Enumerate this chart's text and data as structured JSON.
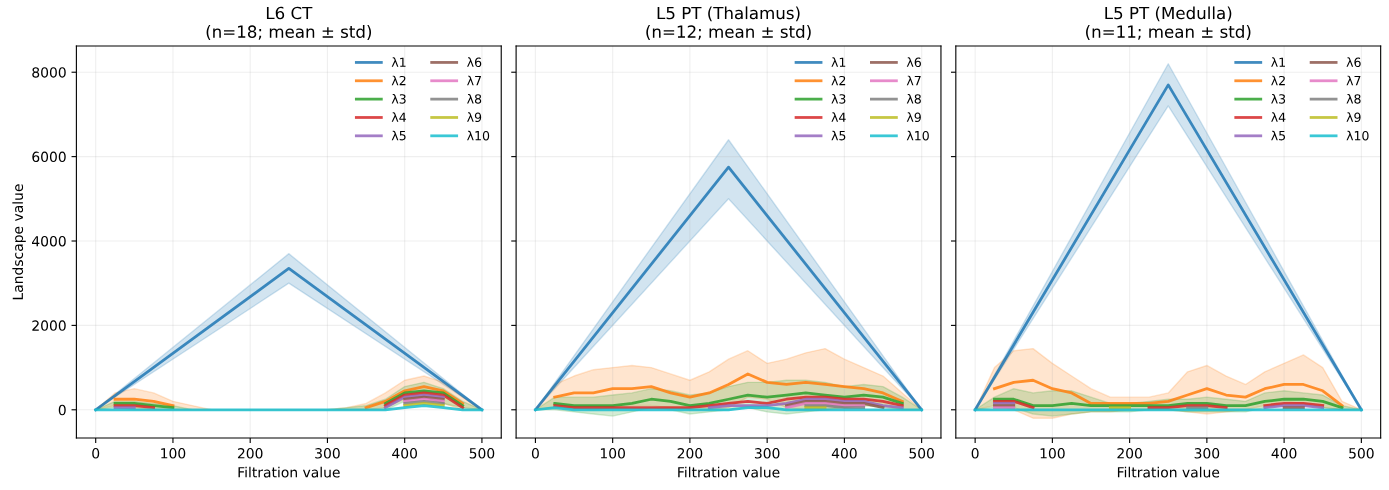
{
  "chart_data": [
    {
      "type": "line",
      "title": "L6 CT\n(n=18; mean ± std)",
      "xlabel": "Filtration value",
      "ylabel": "Landscape value",
      "xlim": [
        -25,
        525
      ],
      "ylim": [
        -670,
        8620
      ],
      "xticks": [
        0,
        100,
        200,
        300,
        400,
        500
      ],
      "yticks": [
        0,
        2000,
        4000,
        6000,
        8000
      ],
      "grid": true,
      "legend": "top right",
      "line_style": "solid",
      "x": [
        0,
        25,
        50,
        75,
        100,
        125,
        150,
        175,
        200,
        225,
        250,
        275,
        300,
        325,
        350,
        375,
        400,
        425,
        450,
        475,
        500
      ],
      "series": [
        {
          "name": "λ1",
          "color": "#1f77b4",
          "x": [
            0,
            250,
            500
          ],
          "values": [
            0,
            3350,
            0
          ],
          "lower": [
            0,
            3000,
            0
          ],
          "upper": [
            0,
            3700,
            0
          ]
        },
        {
          "name": "λ2",
          "color": "#ff7f0e",
          "values": [
            null,
            250,
            250,
            200,
            100,
            null,
            null,
            null,
            null,
            null,
            null,
            null,
            null,
            null,
            50,
            200,
            450,
            550,
            450,
            150,
            null
          ],
          "lower": [
            0,
            100,
            50,
            0,
            0,
            0,
            0,
            0,
            0,
            0,
            0,
            0,
            0,
            0,
            0,
            50,
            250,
            300,
            150,
            0,
            0
          ],
          "upper": [
            0,
            400,
            500,
            400,
            200,
            100,
            0,
            0,
            0,
            0,
            0,
            0,
            0,
            50,
            150,
            400,
            700,
            800,
            650,
            300,
            0
          ]
        },
        {
          "name": "λ3",
          "color": "#2ca02c",
          "values": [
            null,
            150,
            150,
            100,
            50,
            null,
            null,
            null,
            null,
            null,
            null,
            null,
            null,
            null,
            null,
            150,
            400,
            450,
            400,
            100,
            null
          ],
          "lower": [
            0,
            50,
            0,
            0,
            0,
            0,
            0,
            0,
            0,
            0,
            0,
            0,
            0,
            0,
            0,
            0,
            200,
            300,
            150,
            50,
            0
          ],
          "upper": [
            0,
            200,
            200,
            150,
            100,
            0,
            0,
            0,
            0,
            0,
            0,
            0,
            0,
            50,
            100,
            250,
            550,
            650,
            500,
            200,
            0
          ]
        },
        {
          "name": "λ4",
          "color": "#d62728",
          "values": [
            null,
            100,
            100,
            50,
            null,
            null,
            null,
            null,
            null,
            null,
            null,
            null,
            null,
            null,
            null,
            100,
            350,
            400,
            350,
            50,
            null
          ]
        },
        {
          "name": "λ5",
          "color": "#9467bd",
          "values": [
            null,
            50,
            50,
            null,
            null,
            null,
            null,
            null,
            null,
            null,
            null,
            null,
            null,
            null,
            null,
            50,
            300,
            350,
            300,
            null,
            null
          ]
        },
        {
          "name": "λ6",
          "color": "#8c564b",
          "values": [
            null,
            null,
            null,
            null,
            null,
            null,
            null,
            null,
            null,
            null,
            null,
            null,
            null,
            null,
            null,
            null,
            250,
            300,
            250,
            null,
            null
          ]
        },
        {
          "name": "λ7",
          "color": "#e377c2",
          "values": [
            null,
            null,
            null,
            null,
            null,
            null,
            null,
            null,
            null,
            null,
            null,
            null,
            null,
            null,
            null,
            null,
            200,
            250,
            200,
            null,
            null
          ]
        },
        {
          "name": "λ8",
          "color": "#7f7f7f",
          "values": [
            null,
            null,
            null,
            null,
            null,
            null,
            null,
            null,
            null,
            null,
            null,
            null,
            null,
            null,
            null,
            null,
            150,
            200,
            150,
            null,
            null
          ]
        },
        {
          "name": "λ9",
          "color": "#bcbd22",
          "values": [
            null,
            null,
            null,
            null,
            null,
            null,
            null,
            null,
            null,
            null,
            null,
            null,
            null,
            null,
            null,
            null,
            100,
            150,
            100,
            null,
            null
          ]
        },
        {
          "name": "λ10",
          "color": "#17becf",
          "values": [
            0,
            0,
            0,
            0,
            0,
            0,
            0,
            0,
            0,
            0,
            0,
            0,
            0,
            0,
            0,
            0,
            50,
            100,
            50,
            0,
            0
          ]
        }
      ]
    },
    {
      "type": "line",
      "title": "L5 PT (Thalamus)\n(n=12; mean ± std)",
      "xlabel": "Filtration value",
      "xlim": [
        -25,
        525
      ],
      "ylim": [
        -670,
        8620
      ],
      "xticks": [
        0,
        100,
        200,
        300,
        400,
        500
      ],
      "yticks": [
        0,
        2000,
        4000,
        6000,
        8000
      ],
      "tick_labels": "x",
      "grid": true,
      "legend": "top right",
      "line_style": "solid",
      "x": [
        0,
        25,
        50,
        75,
        100,
        125,
        150,
        175,
        200,
        225,
        250,
        275,
        300,
        325,
        350,
        375,
        400,
        425,
        450,
        475,
        500
      ],
      "series": [
        {
          "name": "λ1",
          "color": "#1f77b4",
          "x": [
            0,
            250,
            500
          ],
          "values": [
            0,
            5750,
            0
          ],
          "lower": [
            0,
            5000,
            0
          ],
          "upper": [
            0,
            6400,
            0
          ]
        },
        {
          "name": "λ2",
          "color": "#ff7f0e",
          "values": [
            null,
            300,
            400,
            400,
            500,
            500,
            550,
            400,
            300,
            400,
            600,
            850,
            650,
            600,
            650,
            600,
            550,
            500,
            400,
            200,
            null
          ],
          "lower": [
            0,
            50,
            50,
            0,
            50,
            100,
            100,
            50,
            0,
            0,
            50,
            300,
            250,
            50,
            0,
            0,
            50,
            100,
            100,
            0,
            0
          ],
          "upper": [
            0,
            600,
            800,
            950,
            1000,
            1050,
            1000,
            850,
            700,
            900,
            1200,
            1400,
            1100,
            1200,
            1350,
            1450,
            1200,
            1000,
            800,
            400,
            0
          ]
        },
        {
          "name": "λ3",
          "color": "#2ca02c",
          "values": [
            null,
            150,
            100,
            100,
            100,
            150,
            250,
            200,
            100,
            150,
            250,
            350,
            300,
            350,
            400,
            350,
            300,
            350,
            300,
            150,
            null
          ],
          "lower": [
            0,
            0,
            -50,
            -100,
            -150,
            -50,
            50,
            0,
            -100,
            -50,
            0,
            50,
            -50,
            -100,
            -50,
            0,
            50,
            100,
            50,
            0,
            0
          ],
          "upper": [
            0,
            300,
            300,
            300,
            350,
            400,
            500,
            450,
            350,
            400,
            550,
            650,
            650,
            700,
            700,
            650,
            550,
            600,
            550,
            300,
            0
          ]
        },
        {
          "name": "λ4",
          "color": "#d62728",
          "values": [
            null,
            100,
            50,
            50,
            50,
            50,
            50,
            50,
            50,
            100,
            150,
            200,
            150,
            250,
            300,
            300,
            250,
            250,
            200,
            100,
            null
          ]
        },
        {
          "name": "λ5",
          "color": "#9467bd",
          "values": [
            null,
            null,
            null,
            null,
            null,
            null,
            null,
            null,
            null,
            50,
            100,
            100,
            100,
            150,
            250,
            250,
            200,
            200,
            100,
            50,
            null
          ]
        },
        {
          "name": "λ6",
          "color": "#8c564b",
          "values": [
            null,
            null,
            null,
            null,
            null,
            null,
            null,
            null,
            null,
            null,
            null,
            null,
            null,
            100,
            200,
            200,
            150,
            150,
            50,
            null,
            null
          ]
        },
        {
          "name": "λ7",
          "color": "#e377c2",
          "values": [
            null,
            null,
            null,
            null,
            null,
            null,
            null,
            null,
            null,
            null,
            null,
            null,
            null,
            50,
            150,
            150,
            100,
            100,
            null,
            null,
            null
          ]
        },
        {
          "name": "λ8",
          "color": "#7f7f7f",
          "values": [
            null,
            null,
            null,
            null,
            null,
            null,
            null,
            null,
            null,
            null,
            null,
            null,
            null,
            null,
            100,
            100,
            50,
            50,
            null,
            null,
            null
          ]
        },
        {
          "name": "λ9",
          "color": "#bcbd22",
          "values": [
            null,
            null,
            null,
            null,
            null,
            null,
            null,
            null,
            null,
            null,
            null,
            null,
            null,
            null,
            50,
            50,
            null,
            null,
            null,
            null,
            null
          ]
        },
        {
          "name": "λ10",
          "color": "#17becf",
          "values": [
            0,
            50,
            0,
            0,
            0,
            0,
            0,
            0,
            0,
            0,
            0,
            50,
            50,
            0,
            0,
            0,
            0,
            0,
            0,
            0,
            0
          ]
        }
      ]
    },
    {
      "type": "line",
      "title": "L5 PT (Medulla)\n(n=11; mean ± std)",
      "xlabel": "Filtration value",
      "xlim": [
        -25,
        525
      ],
      "ylim": [
        -670,
        8620
      ],
      "xticks": [
        0,
        100,
        200,
        300,
        400,
        500
      ],
      "yticks": [
        0,
        2000,
        4000,
        6000,
        8000
      ],
      "tick_labels": "x",
      "grid": true,
      "legend": "top right",
      "line_style": "solid",
      "x": [
        0,
        25,
        50,
        75,
        100,
        125,
        150,
        175,
        200,
        225,
        250,
        275,
        300,
        325,
        350,
        375,
        400,
        425,
        450,
        475,
        500
      ],
      "series": [
        {
          "name": "λ1",
          "color": "#1f77b4",
          "x": [
            0,
            250,
            500
          ],
          "values": [
            0,
            7700,
            0
          ],
          "lower": [
            0,
            7200,
            0
          ],
          "upper": [
            0,
            8200,
            0
          ]
        },
        {
          "name": "λ2",
          "color": "#ff7f0e",
          "values": [
            null,
            500,
            650,
            700,
            500,
            400,
            150,
            150,
            150,
            150,
            200,
            350,
            500,
            350,
            300,
            500,
            600,
            600,
            450,
            100,
            null
          ],
          "lower": [
            0,
            100,
            0,
            -200,
            -200,
            -100,
            -50,
            -50,
            0,
            0,
            0,
            -50,
            -100,
            -50,
            0,
            100,
            200,
            150,
            50,
            0,
            0
          ],
          "upper": [
            0,
            1000,
            1400,
            1450,
            1100,
            800,
            500,
            300,
            300,
            300,
            400,
            900,
            1050,
            800,
            600,
            900,
            1100,
            1300,
            1000,
            200,
            0
          ]
        },
        {
          "name": "λ3",
          "color": "#2ca02c",
          "values": [
            null,
            250,
            250,
            100,
            100,
            150,
            100,
            100,
            100,
            100,
            100,
            150,
            150,
            100,
            100,
            200,
            250,
            250,
            200,
            50,
            null
          ],
          "lower": [
            0,
            50,
            50,
            -100,
            -150,
            -100,
            -50,
            -50,
            -50,
            0,
            0,
            -50,
            -50,
            -50,
            -50,
            50,
            100,
            100,
            50,
            0,
            0
          ],
          "upper": [
            0,
            300,
            500,
            400,
            450,
            450,
            300,
            150,
            150,
            200,
            250,
            250,
            300,
            250,
            200,
            400,
            450,
            400,
            350,
            100,
            0
          ]
        },
        {
          "name": "λ4",
          "color": "#d62728",
          "values": [
            null,
            200,
            200,
            50,
            null,
            null,
            null,
            null,
            null,
            50,
            50,
            100,
            100,
            50,
            null,
            100,
            150,
            150,
            100,
            null,
            null
          ]
        },
        {
          "name": "λ5",
          "color": "#9467bd",
          "values": [
            null,
            150,
            150,
            null,
            null,
            null,
            null,
            null,
            null,
            null,
            null,
            null,
            null,
            null,
            null,
            50,
            100,
            100,
            50,
            null,
            null
          ]
        },
        {
          "name": "λ6",
          "color": "#8c564b",
          "values": [
            null,
            100,
            100,
            null,
            null,
            null,
            null,
            null,
            null,
            null,
            null,
            null,
            null,
            null,
            null,
            null,
            50,
            50,
            null,
            null,
            null
          ]
        },
        {
          "name": "λ7",
          "color": "#e377c2",
          "values": [
            null,
            50,
            50,
            null,
            null,
            null,
            null,
            null,
            null,
            null,
            null,
            null,
            null,
            null,
            null,
            null,
            null,
            null,
            null,
            null,
            null
          ]
        },
        {
          "name": "λ8",
          "color": "#7f7f7f",
          "values": [
            null,
            null,
            null,
            null,
            null,
            null,
            null,
            null,
            null,
            null,
            null,
            50,
            50,
            null,
            null,
            null,
            null,
            null,
            null,
            null,
            null
          ]
        },
        {
          "name": "λ9",
          "color": "#bcbd22",
          "values": [
            null,
            null,
            null,
            null,
            null,
            null,
            null,
            50,
            50,
            null,
            null,
            null,
            null,
            null,
            null,
            null,
            null,
            null,
            null,
            null,
            null
          ]
        },
        {
          "name": "λ10",
          "color": "#17becf",
          "values": [
            0,
            0,
            0,
            0,
            0,
            0,
            0,
            0,
            0,
            0,
            0,
            0,
            0,
            0,
            0,
            0,
            0,
            0,
            0,
            0,
            0
          ]
        }
      ]
    }
  ]
}
